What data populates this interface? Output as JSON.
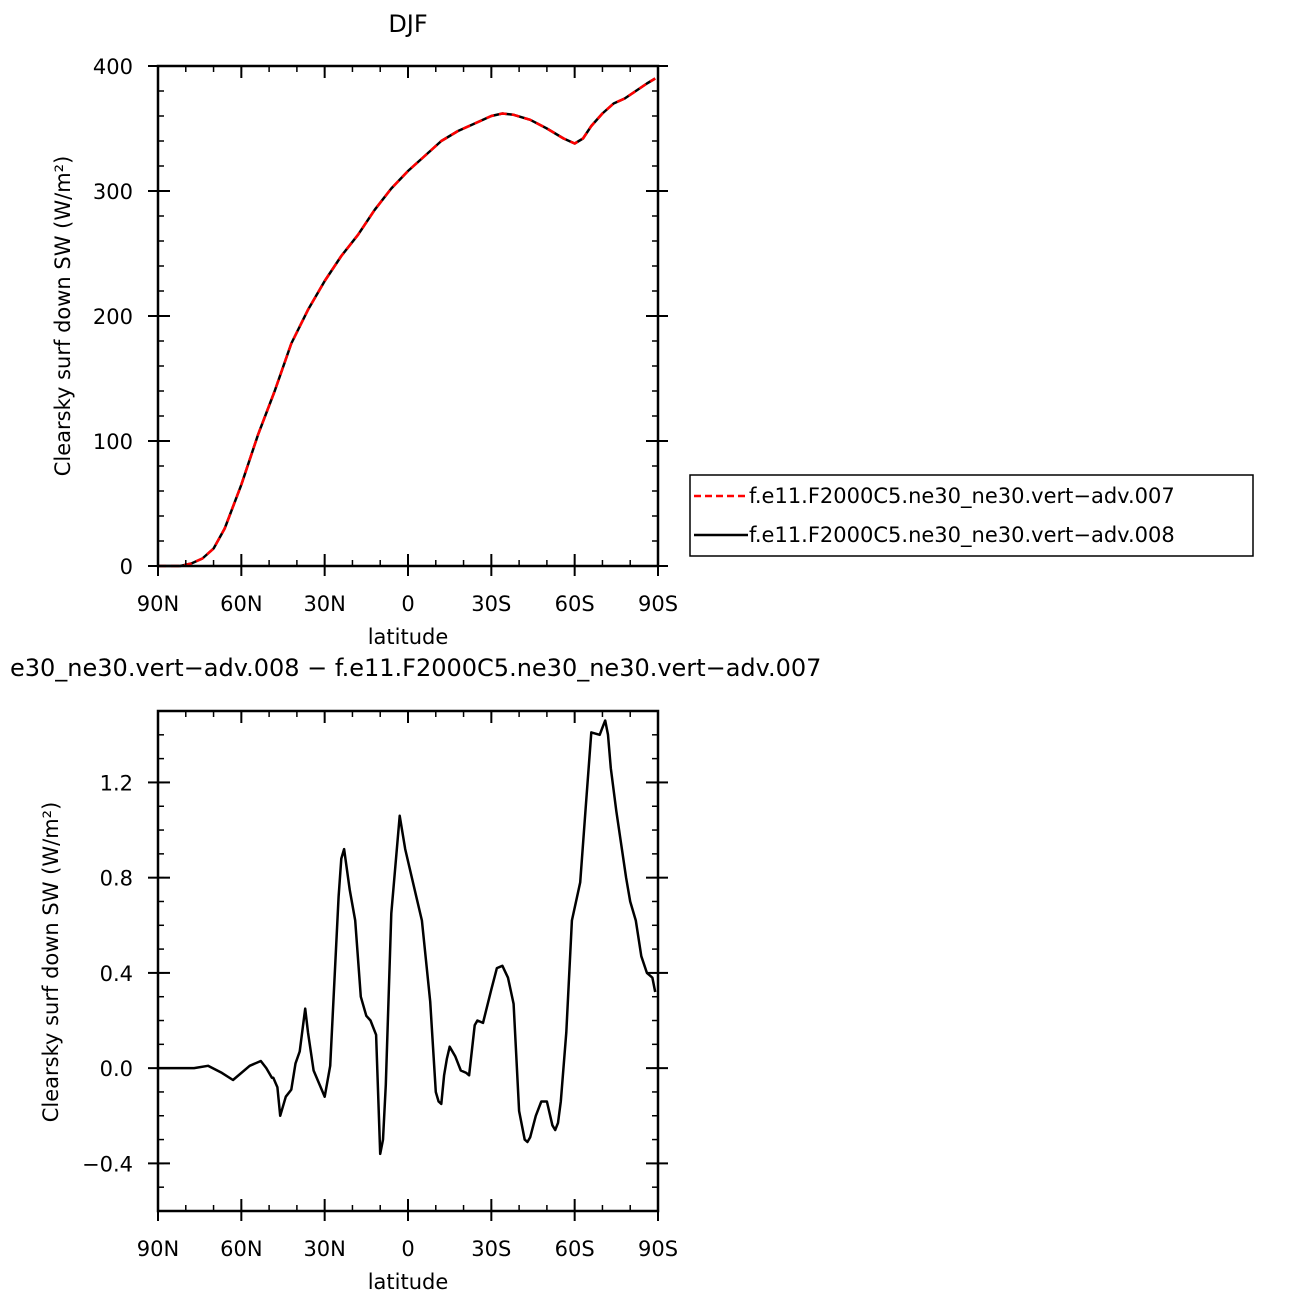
{
  "chart_data": [
    {
      "type": "line",
      "title": "DJF",
      "xlabel": "latitude",
      "ylabel": "Clearsky surf down SW (W/m²)",
      "xlim": [
        90,
        -90
      ],
      "ylim": [
        0,
        400
      ],
      "x_ticks": [
        {
          "value": 90,
          "label": "90N"
        },
        {
          "value": 60,
          "label": "60N"
        },
        {
          "value": 30,
          "label": "30N"
        },
        {
          "value": 0,
          "label": "0"
        },
        {
          "value": -30,
          "label": "30S"
        },
        {
          "value": -60,
          "label": "60S"
        },
        {
          "value": -90,
          "label": "90S"
        }
      ],
      "y_ticks": [
        {
          "value": 0,
          "label": "0"
        },
        {
          "value": 100,
          "label": "100"
        },
        {
          "value": 200,
          "label": "200"
        },
        {
          "value": 300,
          "label": "300"
        },
        {
          "value": 400,
          "label": "400"
        }
      ],
      "legend_position": "right",
      "series": [
        {
          "name": "f.e11.F2000C5.ne30_ne30.vert−adv.007",
          "color": "#ff0000",
          "dash": "dashed",
          "x": [
            90,
            82,
            78,
            74,
            70,
            66,
            60,
            54,
            48,
            42,
            36,
            30,
            24,
            18,
            12,
            6,
            0,
            -6,
            -12,
            -18,
            -24,
            -30,
            -34,
            -38,
            -44,
            -50,
            -56,
            -60,
            -63,
            -66,
            -70,
            -74,
            -78,
            -82,
            -86,
            -89
          ],
          "y": [
            0,
            0,
            2,
            6,
            14,
            30,
            65,
            105,
            140,
            178,
            205,
            228,
            248,
            265,
            285,
            302,
            316,
            328,
            340,
            348,
            354,
            360,
            362,
            361,
            357,
            350,
            342,
            338,
            342,
            352,
            362,
            370,
            374,
            380,
            386,
            390
          ]
        },
        {
          "name": "f.e11.F2000C5.ne30_ne30.vert−adv.008",
          "color": "#000000",
          "dash": "solid",
          "x": [
            90,
            82,
            78,
            74,
            70,
            66,
            60,
            54,
            48,
            42,
            36,
            30,
            24,
            18,
            12,
            6,
            0,
            -6,
            -12,
            -18,
            -24,
            -30,
            -34,
            -38,
            -44,
            -50,
            -56,
            -60,
            -63,
            -66,
            -70,
            -74,
            -78,
            -82,
            -86,
            -89
          ],
          "y": [
            0,
            0,
            2,
            6,
            14,
            30,
            65,
            105,
            140,
            178,
            205,
            228,
            248,
            265,
            285,
            302,
            316,
            328,
            340,
            348,
            354,
            360,
            362,
            361,
            357,
            350,
            342,
            338,
            342,
            352,
            362,
            370,
            374,
            380,
            386,
            390
          ]
        }
      ]
    },
    {
      "type": "line",
      "title": "e30_ne30.vert−adv.008 − f.e11.F2000C5.ne30_ne30.vert−adv.007",
      "xlabel": "latitude",
      "ylabel": "Clearsky surf down SW (W/m²)",
      "xlim": [
        90,
        -90
      ],
      "ylim": [
        -0.6,
        1.5
      ],
      "x_ticks": [
        {
          "value": 90,
          "label": "90N"
        },
        {
          "value": 60,
          "label": "60N"
        },
        {
          "value": 30,
          "label": "30N"
        },
        {
          "value": 0,
          "label": "0"
        },
        {
          "value": -30,
          "label": "30S"
        },
        {
          "value": -60,
          "label": "60S"
        },
        {
          "value": -90,
          "label": "90S"
        }
      ],
      "y_ticks": [
        {
          "value": -0.4,
          "label": "−0.4"
        },
        {
          "value": 0.0,
          "label": "0.0"
        },
        {
          "value": 0.4,
          "label": "0.4"
        },
        {
          "value": 0.8,
          "label": "0.8"
        },
        {
          "value": 1.2,
          "label": "1.2"
        }
      ],
      "series": [
        {
          "color": "#000000",
          "dash": "solid",
          "x": [
            90,
            77,
            72,
            67,
            63,
            57,
            53,
            51,
            49,
            48.5,
            47,
            46,
            44,
            42,
            40.5,
            39,
            37,
            36,
            34,
            30,
            28,
            25,
            24,
            23,
            21,
            19,
            17,
            15,
            13.5,
            11.5,
            10,
            9,
            8,
            6,
            3,
            1,
            -3,
            -5,
            -8,
            -10,
            -11,
            -12,
            -13,
            -14,
            -15,
            -17,
            -19,
            -21,
            -22,
            -24,
            -25,
            -27,
            -30,
            -32,
            -34,
            -36,
            -38,
            -39,
            -40,
            -42,
            -43,
            -44,
            -46,
            -48,
            -50,
            -52,
            -53,
            -54,
            -55,
            -57,
            -59,
            -62,
            -64,
            -66,
            -69,
            -70,
            -71,
            -72,
            -73,
            -75,
            -77,
            -78.5,
            -80,
            -82,
            -84,
            -86,
            -87,
            -88,
            -89
          ],
          "y": [
            0,
            0,
            0.01,
            -0.02,
            -0.05,
            0.01,
            0.03,
            0.0,
            -0.04,
            -0.04,
            -0.08,
            -0.2,
            -0.12,
            -0.09,
            0.02,
            0.07,
            0.25,
            0.15,
            -0.01,
            -0.12,
            0.01,
            0.72,
            0.88,
            0.92,
            0.75,
            0.62,
            0.3,
            0.22,
            0.2,
            0.14,
            -0.36,
            -0.3,
            -0.07,
            0.65,
            1.06,
            0.92,
            0.72,
            0.62,
            0.28,
            -0.1,
            -0.14,
            -0.15,
            -0.03,
            0.04,
            0.09,
            0.05,
            -0.01,
            -0.02,
            -0.03,
            0.18,
            0.2,
            0.19,
            0.33,
            0.42,
            0.43,
            0.38,
            0.27,
            0.05,
            -0.18,
            -0.3,
            -0.31,
            -0.29,
            -0.2,
            -0.14,
            -0.14,
            -0.24,
            -0.26,
            -0.23,
            -0.14,
            0.15,
            0.62,
            0.78,
            1.1,
            1.41,
            1.4,
            1.43,
            1.46,
            1.4,
            1.26,
            1.08,
            0.92,
            0.8,
            0.7,
            0.62,
            0.47,
            0.4,
            0.39,
            0.38,
            0.32
          ]
        }
      ]
    }
  ]
}
